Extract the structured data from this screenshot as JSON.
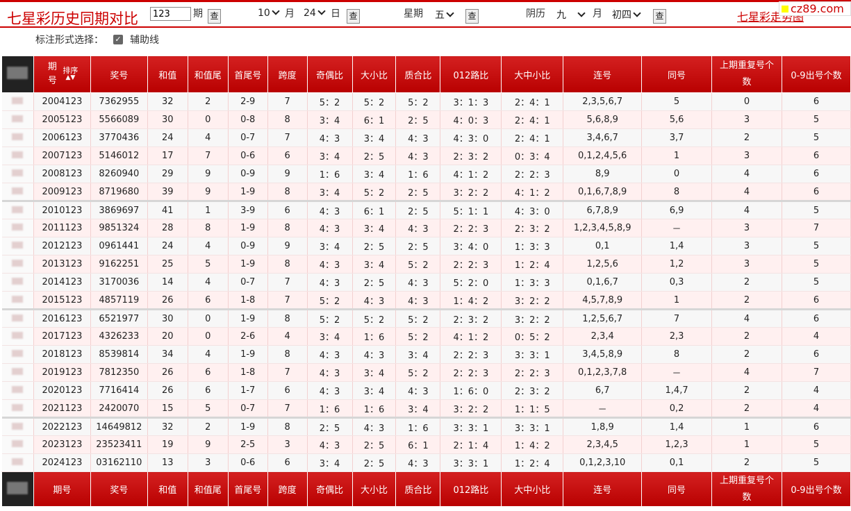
{
  "toolbar": {
    "title": "七星彩历史同期对比",
    "issue_input": "123",
    "issue_label": "期",
    "query_label": "查",
    "month_value": "10",
    "month_label": "月",
    "day_value": "24",
    "day_label": "日",
    "week_label": "星期",
    "week_value": "五",
    "lunar_label": "阴历",
    "lunar_month_value": "九",
    "lunar_month_label": "月",
    "lunar_day_value": "初四",
    "site_link": "七星彩走势图",
    "logo_text": "cz89.com"
  },
  "options": {
    "label": "标注形式选择：",
    "checkbox_label": "辅助线",
    "checked": true
  },
  "table": {
    "headers": [
      "期号",
      "奖号",
      "和值",
      "和值尾",
      "首尾号",
      "跨度",
      "奇偶比",
      "大小比",
      "质合比",
      "012路比",
      "大中小比",
      "连号",
      "同号",
      "上期重复号个数",
      "0-9出号个数"
    ],
    "sort_label": "排序",
    "rows": [
      [
        "2004123",
        "7362955",
        "32",
        "2",
        "2-9",
        "7",
        "5：2",
        "5：2",
        "5：2",
        "3：1：3",
        "2：4：1",
        "2,3,5,6,7",
        "5",
        "0",
        "6"
      ],
      [
        "2005123",
        "5566089",
        "30",
        "0",
        "0-8",
        "8",
        "3：4",
        "6：1",
        "2：5",
        "4：0：3",
        "2：4：1",
        "5,6,8,9",
        "5,6",
        "3",
        "5"
      ],
      [
        "2006123",
        "3770436",
        "24",
        "4",
        "0-7",
        "7",
        "4：3",
        "3：4",
        "4：3",
        "4：3：0",
        "2：4：1",
        "3,4,6,7",
        "3,7",
        "2",
        "5"
      ],
      [
        "2007123",
        "5146012",
        "17",
        "7",
        "0-6",
        "6",
        "3：4",
        "2：5",
        "4：3",
        "2：3：2",
        "0：3：4",
        "0,1,2,4,5,6",
        "1",
        "3",
        "6"
      ],
      [
        "2008123",
        "8260940",
        "29",
        "9",
        "0-9",
        "9",
        "1：6",
        "3：4",
        "1：6",
        "4：1：2",
        "2：2：3",
        "8,9",
        "0",
        "4",
        "6"
      ],
      [
        "2009123",
        "8719680",
        "39",
        "9",
        "1-9",
        "8",
        "3：4",
        "5：2",
        "2：5",
        "3：2：2",
        "4：1：2",
        "0,1,6,7,8,9",
        "8",
        "4",
        "6"
      ],
      [
        "2010123",
        "3869697",
        "41",
        "1",
        "3-9",
        "6",
        "4：3",
        "6：1",
        "2：5",
        "5：1：1",
        "4：3：0",
        "6,7,8,9",
        "6,9",
        "4",
        "5"
      ],
      [
        "2011123",
        "9851324",
        "28",
        "8",
        "1-9",
        "8",
        "4：3",
        "3：4",
        "4：3",
        "2：2：3",
        "2：3：2",
        "1,2,3,4,5,8,9",
        "－",
        "3",
        "7"
      ],
      [
        "2012123",
        "0961441",
        "24",
        "4",
        "0-9",
        "9",
        "3：4",
        "2：5",
        "2：5",
        "3：4：0",
        "1：3：3",
        "0,1",
        "1,4",
        "3",
        "5"
      ],
      [
        "2013123",
        "9162251",
        "25",
        "5",
        "1-9",
        "8",
        "4：3",
        "3：4",
        "5：2",
        "2：2：3",
        "1：2：4",
        "1,2,5,6",
        "1,2",
        "3",
        "5"
      ],
      [
        "2014123",
        "3170036",
        "14",
        "4",
        "0-7",
        "7",
        "4：3",
        "2：5",
        "4：3",
        "5：2：0",
        "1：3：3",
        "0,1,6,7",
        "0,3",
        "2",
        "5"
      ],
      [
        "2015123",
        "4857119",
        "26",
        "6",
        "1-8",
        "7",
        "5：2",
        "4：3",
        "4：3",
        "1：4：2",
        "3：2：2",
        "4,5,7,8,9",
        "1",
        "2",
        "6"
      ],
      [
        "2016123",
        "6521977",
        "30",
        "0",
        "1-9",
        "8",
        "5：2",
        "5：2",
        "5：2",
        "2：3：2",
        "3：2：2",
        "1,2,5,6,7",
        "7",
        "4",
        "6"
      ],
      [
        "2017123",
        "4326233",
        "20",
        "0",
        "2-6",
        "4",
        "3：4",
        "1：6",
        "5：2",
        "4：1：2",
        "0：5：2",
        "2,3,4",
        "2,3",
        "2",
        "4"
      ],
      [
        "2018123",
        "8539814",
        "34",
        "4",
        "1-9",
        "8",
        "4：3",
        "4：3",
        "3：4",
        "2：2：3",
        "3：3：1",
        "3,4,5,8,9",
        "8",
        "2",
        "6"
      ],
      [
        "2019123",
        "7812350",
        "26",
        "6",
        "1-8",
        "7",
        "4：3",
        "3：4",
        "5：2",
        "2：2：3",
        "2：2：3",
        "0,1,2,3,7,8",
        "－",
        "4",
        "7"
      ],
      [
        "2020123",
        "7716414",
        "26",
        "6",
        "1-7",
        "6",
        "4：3",
        "3：4",
        "4：3",
        "1：6：0",
        "2：3：2",
        "6,7",
        "1,4,7",
        "2",
        "4"
      ],
      [
        "2021123",
        "2420070",
        "15",
        "5",
        "0-7",
        "7",
        "1：6",
        "1：6",
        "3：4",
        "3：2：2",
        "1：1：5",
        "－",
        "0,2",
        "2",
        "4"
      ],
      [
        "2022123",
        "14649812",
        "32",
        "2",
        "1-9",
        "8",
        "2：5",
        "4：3",
        "1：6",
        "3：3：1",
        "3：3：1",
        "1,8,9",
        "1,4",
        "1",
        "6"
      ],
      [
        "2023123",
        "23523411",
        "19",
        "9",
        "2-5",
        "3",
        "4：3",
        "2：5",
        "6：1",
        "2：1：4",
        "1：4：2",
        "2,3,4,5",
        "1,2,3",
        "1",
        "5"
      ],
      [
        "2024123",
        "03162110",
        "13",
        "3",
        "0-6",
        "6",
        "3：4",
        "2：5",
        "4：3",
        "3：3：1",
        "1：2：4",
        "0,1,2,3,10",
        "0,1",
        "2",
        "5"
      ]
    ]
  }
}
